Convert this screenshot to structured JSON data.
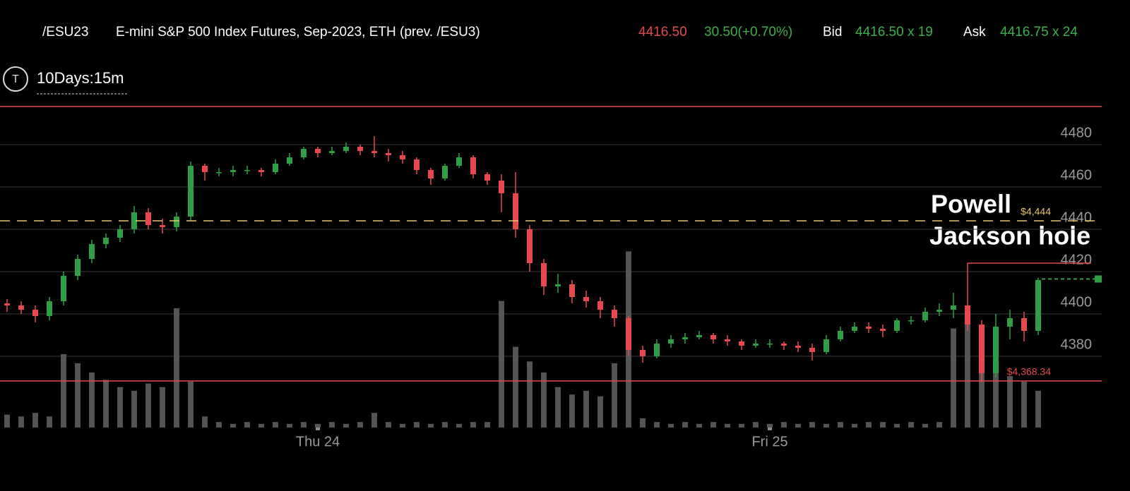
{
  "header": {
    "symbol": "/ESU23",
    "description": "E-mini S&P 500 Index Futures, Sep-2023, ETH (prev. /ESU3)",
    "price": {
      "value": 4416.5,
      "label": "4416.50"
    },
    "change": "30.50(+0.70%)",
    "bid_label": "Bid",
    "bid": "4416.50 x 19",
    "ask_label": "Ask",
    "ask": "4416.75 x 24"
  },
  "toolbar": {
    "icon": "T",
    "interval": "10Days:15m"
  },
  "chart_data": {
    "type": "candlestick",
    "categories": [
      null,
      null,
      null,
      null,
      null,
      null,
      null,
      null,
      null,
      null,
      null,
      null,
      null,
      null,
      null,
      null,
      null,
      null,
      null,
      null,
      null,
      null,
      "Thu 24",
      null,
      null,
      null,
      null,
      null,
      null,
      null,
      null,
      null,
      null,
      null,
      null,
      null,
      null,
      null,
      null,
      null,
      null,
      null,
      null,
      null,
      null,
      null,
      null,
      null,
      null,
      null,
      null,
      null,
      null,
      null,
      "Fri 25",
      null,
      null,
      null,
      null,
      null,
      null,
      null,
      null,
      null,
      null,
      null,
      null,
      null,
      null,
      null,
      null,
      null,
      null,
      null
    ],
    "open": [
      4405,
      4404,
      4402,
      4399,
      4406,
      4418,
      4426,
      4433,
      4436,
      4440,
      4448,
      4442,
      4441,
      4446,
      4470,
      4467,
      4467,
      4468,
      4468,
      4467,
      4471,
      4474,
      4478,
      4476,
      4477,
      4479,
      4477,
      4476,
      4475,
      4473,
      4468,
      4464,
      4470,
      4474,
      4466,
      4463,
      4457,
      4440,
      4424,
      4413,
      4414,
      4408,
      4406,
      4402,
      4398,
      4383,
      4380,
      4386,
      4388,
      4389,
      4390,
      4388,
      4387,
      4385,
      4386,
      4386,
      4385,
      4384,
      4382,
      4388,
      4392,
      4394,
      4393,
      4392,
      4397,
      4397,
      4401,
      4402,
      4404,
      4395,
      4372,
      4394,
      4398,
      4392
    ],
    "high": [
      4407,
      4406,
      4404,
      4408,
      4420,
      4428,
      4435,
      4438,
      4442,
      4451,
      4450,
      4445,
      4448,
      4472,
      4471,
      4469,
      4470,
      4470,
      4469,
      4473,
      4476,
      4479,
      4479,
      4479,
      4481,
      4480,
      4484,
      4478,
      4477,
      4474,
      4469,
      4471,
      4476,
      4475,
      4467,
      4466,
      4467,
      4442,
      4426,
      4419,
      4416,
      4411,
      4408,
      4404,
      4399,
      4385,
      4388,
      4390,
      4391,
      4392,
      4391,
      4390,
      4388,
      4388,
      4388,
      4387,
      4387,
      4386,
      4390,
      4394,
      4396,
      4396,
      4395,
      4398,
      4399,
      4403,
      4405,
      4410,
      4424,
      4397,
      4400,
      4402,
      4401,
      4417
    ],
    "low": [
      4401,
      4400,
      4396,
      4397,
      4404,
      4416,
      4424,
      4431,
      4434,
      4438,
      4440,
      4438,
      4439,
      4444,
      4463,
      4465,
      4465,
      4466,
      4465,
      4466,
      4470,
      4473,
      4474,
      4475,
      4476,
      4475,
      4474,
      4472,
      4471,
      4466,
      4461,
      4463,
      4469,
      4464,
      4461,
      4448,
      4436,
      4420,
      4409,
      4410,
      4405,
      4403,
      4398,
      4394,
      4380,
      4377,
      4379,
      4384,
      4386,
      4388,
      4386,
      4385,
      4383,
      4384,
      4384,
      4383,
      4382,
      4378,
      4381,
      4387,
      4391,
      4391,
      4389,
      4391,
      4395,
      4396,
      4399,
      4398,
      4392,
      4368,
      4370,
      4388,
      4387,
      4390
    ],
    "close": [
      4404,
      4402,
      4399,
      4406,
      4418,
      4426,
      4433,
      4436,
      4440,
      4448,
      4442,
      4441,
      4446,
      4470,
      4467,
      4467,
      4468,
      4468,
      4467,
      4471,
      4474,
      4478,
      4476,
      4477,
      4479,
      4477,
      4476,
      4475,
      4473,
      4468,
      4464,
      4470,
      4474,
      4466,
      4463,
      4457,
      4440,
      4424,
      4413,
      4414,
      4408,
      4406,
      4402,
      4398,
      4383,
      4380,
      4386,
      4388,
      4389,
      4390,
      4388,
      4387,
      4385,
      4386,
      4386,
      4385,
      4384,
      4382,
      4388,
      4392,
      4394,
      4393,
      4392,
      4397,
      4397,
      4401,
      4402,
      4404,
      4395,
      4372,
      4394,
      4398,
      4392,
      4416
    ],
    "volume": [
      7,
      6,
      8,
      6,
      40,
      35,
      30,
      26,
      22,
      20,
      24,
      22,
      65,
      25,
      6,
      3,
      2,
      3,
      2,
      3,
      2,
      3,
      2,
      3,
      2,
      3,
      8,
      3,
      2,
      3,
      2,
      3,
      2,
      3,
      3,
      69,
      44,
      36,
      30,
      22,
      18,
      20,
      17,
      35,
      96,
      5,
      3,
      2,
      3,
      2,
      3,
      2,
      2,
      3,
      2,
      3,
      2,
      3,
      2,
      3,
      2,
      3,
      3,
      2,
      3,
      2,
      3,
      54,
      62,
      46,
      30,
      28,
      25,
      20
    ],
    "vlim": [
      0,
      100
    ],
    "ylim": [
      4345,
      4498
    ],
    "yticks": [
      4380,
      4400,
      4420,
      4440,
      4460,
      4480
    ],
    "grid": true,
    "up_color": "#2f9e44",
    "down_color": "#e5484d",
    "volume_color": "#555555",
    "annotations": [
      "Powell",
      "Jackson hole"
    ],
    "levels": [
      {
        "value": 4444,
        "label": "$4,444",
        "color": "#e8c56a",
        "style": "dashed"
      },
      {
        "value": 4368.34,
        "label": "$4,368.34",
        "color": "#e5484d",
        "style": "solid"
      }
    ]
  }
}
